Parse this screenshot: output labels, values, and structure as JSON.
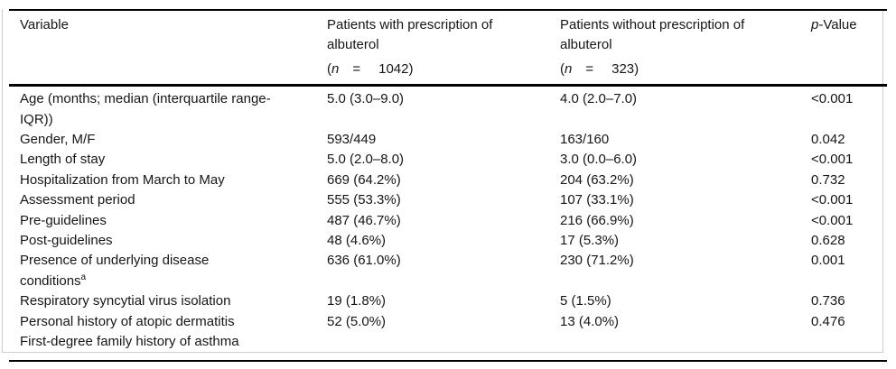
{
  "header": {
    "variable": "Variable",
    "with_albuterol": {
      "title_lines": [
        "Patients with prescription of",
        "albuterol"
      ],
      "n_open": "(",
      "n_symbol": "n",
      "n_equals": "=",
      "n_count": "1042)"
    },
    "without_albuterol": {
      "title_lines": [
        "Patients without prescription of",
        "albuterol"
      ],
      "n_open": "(",
      "n_symbol": "n",
      "n_equals": "=",
      "n_count": "323)"
    },
    "p_value": {
      "italic": "p",
      "rest": "-Value"
    }
  },
  "rows": [
    {
      "variable": [
        "Age (months; median (interquartile range-",
        "IQR))"
      ],
      "with_albuterol": "5.0 (3.0–9.0)",
      "without_albuterol": "4.0 (2.0–7.0)",
      "p_value": "<0.001"
    },
    {
      "variable": "Gender, M/F",
      "with_albuterol": "593/449",
      "without_albuterol": "163/160",
      "p_value": "0.042"
    },
    {
      "variable": "Length of stay",
      "with_albuterol": "5.0 (2.0–8.0)",
      "without_albuterol": "3.0 (0.0–6.0)",
      "p_value": "<0.001"
    },
    {
      "variable": "Hospitalization from March to May",
      "with_albuterol": "669 (64.2%)",
      "without_albuterol": "204 (63.2%)",
      "p_value": "0.732"
    },
    {
      "variable": "Assessment period",
      "with_albuterol": "555 (53.3%)",
      "without_albuterol": "107 (33.1%)",
      "p_value": "<0.001"
    },
    {
      "variable": "Pre-guidelines",
      "with_albuterol": "487 (46.7%)",
      "without_albuterol": "216 (66.9%)",
      "p_value": "<0.001"
    },
    {
      "variable": "Post-guidelines",
      "with_albuterol": "48 (4.6%)",
      "without_albuterol": "17 (5.3%)",
      "p_value": "0.628"
    },
    {
      "variable": [
        "Presence of underlying disease",
        "conditions"
      ],
      "variable_sup": "a",
      "with_albuterol": "636 (61.0%)",
      "without_albuterol": "230 (71.2%)",
      "p_value": "0.001"
    },
    {
      "variable": "Respiratory syncytial virus isolation",
      "with_albuterol": "19 (1.8%)",
      "without_albuterol": "5 (1.5%)",
      "p_value": "0.736"
    },
    {
      "variable": "Personal history of atopic dermatitis",
      "with_albuterol": "52 (5.0%)",
      "without_albuterol": "13 (4.0%)",
      "p_value": "0.476"
    },
    {
      "variable": "First-degree family history of asthma",
      "with_albuterol": "",
      "without_albuterol": "",
      "p_value": ""
    }
  ],
  "colors": {
    "rule": "#000000",
    "frame": "#cccccc",
    "text": "#161616",
    "background": "#ffffff"
  }
}
